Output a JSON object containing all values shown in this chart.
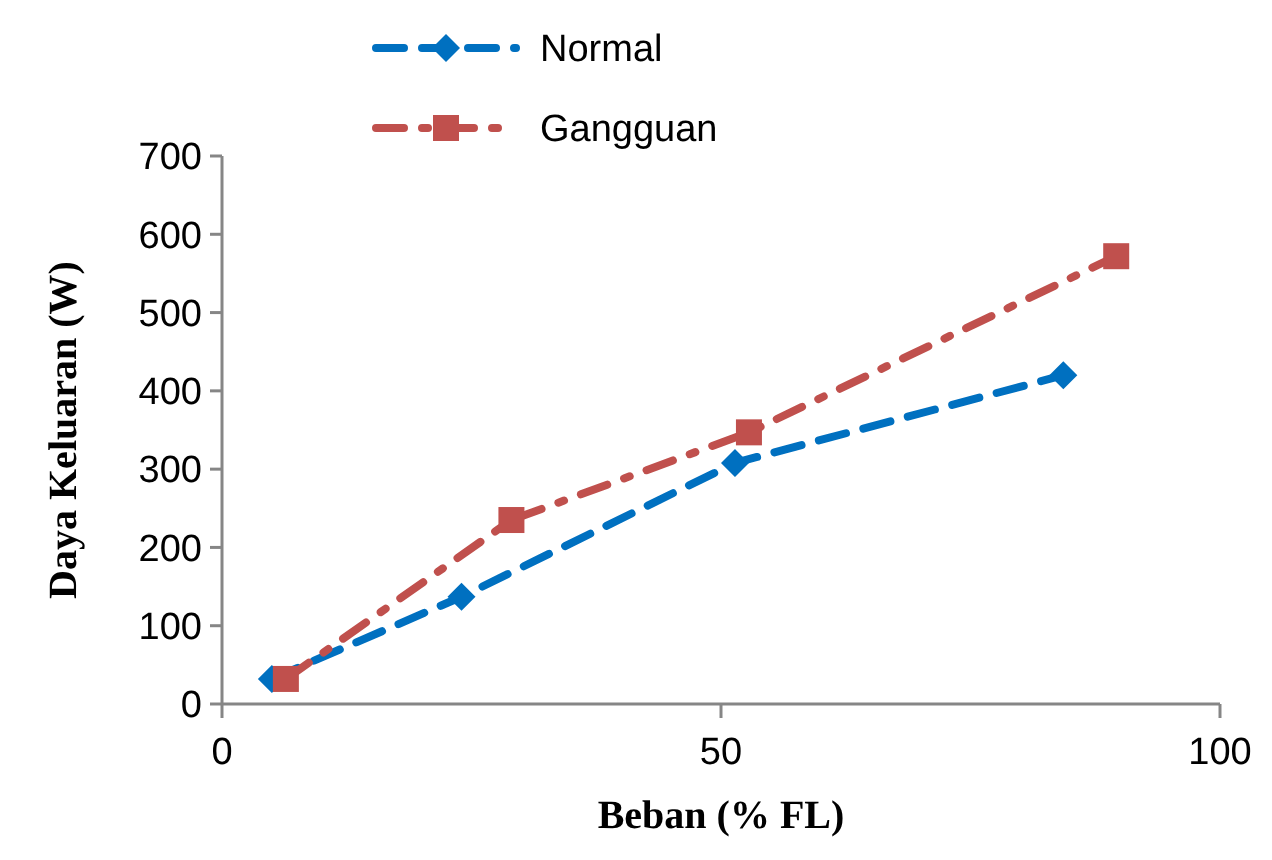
{
  "chart_data": {
    "type": "line",
    "xlabel": "Beban  (% FL)",
    "ylabel": "Daya  Keluaran  (W)",
    "xlim": [
      0,
      100
    ],
    "xticks": [
      0,
      50,
      100
    ],
    "ylim": [
      0,
      700
    ],
    "yticks": [
      0,
      100,
      200,
      300,
      400,
      500,
      600,
      700
    ],
    "grid": false,
    "legend": "top left",
    "series": [
      {
        "name": "Normal",
        "color": "#0070c0",
        "marker": "diamond",
        "line_style": "dashed",
        "x": [
          5,
          24,
          51.4,
          84.3
        ],
        "values": [
          32,
          137,
          308,
          420
        ]
      },
      {
        "name": "Gangguan",
        "color": "#c0504d",
        "marker": "square",
        "line_style": "dashdot",
        "x": [
          6.4,
          29,
          52.8,
          89.6
        ],
        "values": [
          32,
          235,
          347,
          572
        ]
      }
    ]
  }
}
